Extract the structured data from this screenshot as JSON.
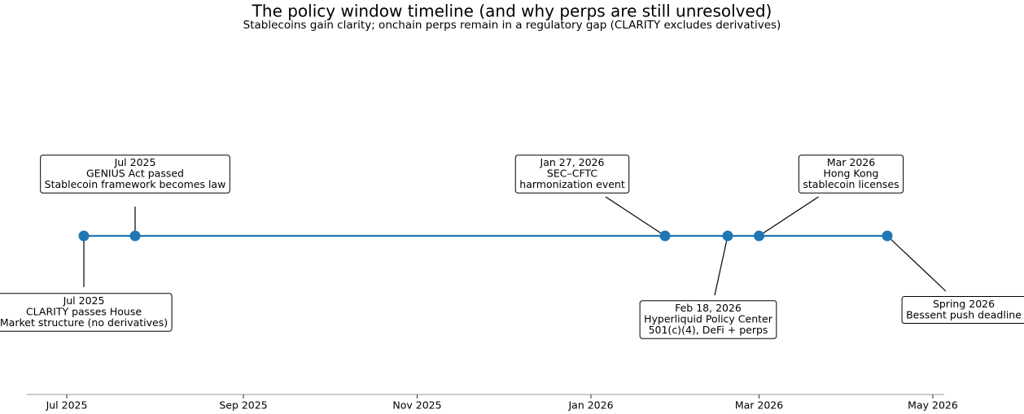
{
  "chart_data": {
    "type": "timeline",
    "title": "The policy window timeline (and why perps are still unresolved)",
    "subtitle": "Stablecoins gain clarity; onchain perps remain in a regulatory gap (CLARITY excludes derivatives)",
    "color": "#1f77b4",
    "xlim": [
      "2025-06-17",
      "2026-05-05"
    ],
    "xticks": [
      {
        "value": "2025-07-01",
        "label": "Jul 2025"
      },
      {
        "value": "2025-09-01",
        "label": "Sep 2025"
      },
      {
        "value": "2025-11-01",
        "label": "Nov 2025"
      },
      {
        "value": "2026-01-01",
        "label": "Jan 2026"
      },
      {
        "value": "2026-03-01",
        "label": "Mar 2026"
      },
      {
        "value": "2026-05-01",
        "label": "May 2026"
      }
    ],
    "events": [
      {
        "date": "2025-07-07",
        "label": [
          "Jul 2025",
          "CLARITY passes House",
          "Market structure (no derivatives)"
        ]
      },
      {
        "date": "2025-07-25",
        "label": [
          "Jul 2025",
          "GENIUS Act passed",
          "Stablecoin framework becomes law"
        ]
      },
      {
        "date": "2026-01-27",
        "label": [
          "Jan 27, 2026",
          "SEC–CFTC",
          "harmonization event"
        ]
      },
      {
        "date": "2026-02-18",
        "label": [
          "Feb 18, 2026",
          "Hyperliquid Policy Center",
          "501(c)(4), DeFi + perps"
        ]
      },
      {
        "date": "2026-03-01",
        "label": [
          "Mar 2026",
          "Hong Kong",
          "stablecoin licenses"
        ]
      },
      {
        "date": "2026-04-15",
        "label": [
          "Spring 2026",
          "Bessent push deadline"
        ]
      }
    ]
  }
}
